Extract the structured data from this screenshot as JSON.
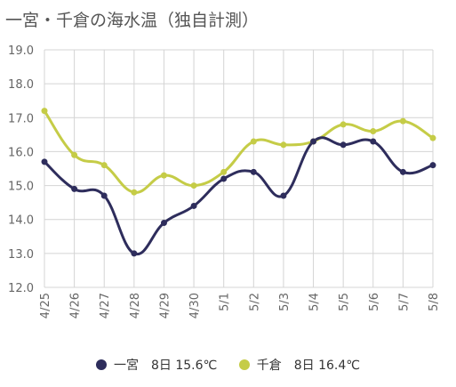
{
  "chart_data": {
    "type": "line",
    "title": "一宮・千倉の海水温（独自計測）",
    "categories": [
      "4/25",
      "4/26",
      "4/27",
      "4/28",
      "4/29",
      "4/30",
      "5/1",
      "5/2",
      "5/3",
      "5/4",
      "5/5",
      "5/6",
      "5/7",
      "5/8"
    ],
    "ylim": [
      12.0,
      19.0
    ],
    "yticks": [
      "12.0",
      "13.0",
      "14.0",
      "15.0",
      "16.0",
      "17.0",
      "18.0",
      "19.0"
    ],
    "grid": true,
    "legend_position": "bottom",
    "series": [
      {
        "name": "一宮",
        "color": "#2e2d5c",
        "values": [
          15.7,
          14.9,
          14.7,
          13.0,
          13.9,
          14.4,
          15.2,
          15.4,
          14.7,
          16.3,
          16.2,
          16.3,
          15.4,
          15.6
        ]
      },
      {
        "name": "千倉",
        "color": "#c5cc47",
        "values": [
          17.2,
          15.9,
          15.6,
          14.8,
          15.3,
          15.0,
          15.4,
          16.3,
          16.2,
          16.3,
          16.8,
          16.6,
          16.9,
          16.4
        ]
      }
    ]
  },
  "legend": {
    "series0": {
      "name": "一宮",
      "value": "8日 15.6℃"
    },
    "series1": {
      "name": "千倉",
      "value": "8日 16.4℃"
    }
  }
}
